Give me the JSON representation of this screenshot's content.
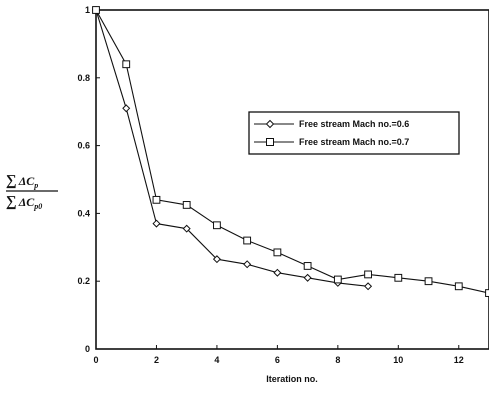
{
  "chart_data": {
    "type": "line",
    "title": "",
    "xlabel": "Iteration no.",
    "ylabel": "∑ΔCp / ∑ΔCp0",
    "ylabel_parts": {
      "num_sum": "∑",
      "num_delta": "ΔC",
      "num_sub": "p",
      "den_sum": "∑",
      "den_delta": "ΔC",
      "den_sub": "p0"
    },
    "xlim": [
      0,
      13
    ],
    "ylim": [
      0,
      1
    ],
    "xticks": [
      0,
      2,
      4,
      6,
      8,
      10,
      12
    ],
    "yticks": [
      0,
      0.2,
      0.4,
      0.6,
      0.8,
      1
    ],
    "ytick_labels": [
      "0",
      "0.2",
      "0.4",
      "0.6",
      "0.8",
      "1"
    ],
    "grid": false,
    "legend_position": "right-middle",
    "series": [
      {
        "name": "Free stream Mach no.=0.6",
        "marker": "diamond",
        "x": [
          0,
          1,
          2,
          3,
          4,
          5,
          6,
          7,
          8,
          9
        ],
        "y": [
          1.0,
          0.71,
          0.37,
          0.355,
          0.265,
          0.25,
          0.225,
          0.21,
          0.195,
          0.185
        ]
      },
      {
        "name": "Free stream Mach no.=0.7",
        "marker": "square",
        "x": [
          0,
          1,
          2,
          3,
          4,
          5,
          6,
          7,
          8,
          9,
          10,
          11,
          12,
          13
        ],
        "y": [
          1.0,
          0.84,
          0.44,
          0.425,
          0.365,
          0.32,
          0.285,
          0.245,
          0.205,
          0.22,
          0.21,
          0.2,
          0.185,
          0.165
        ]
      }
    ]
  }
}
